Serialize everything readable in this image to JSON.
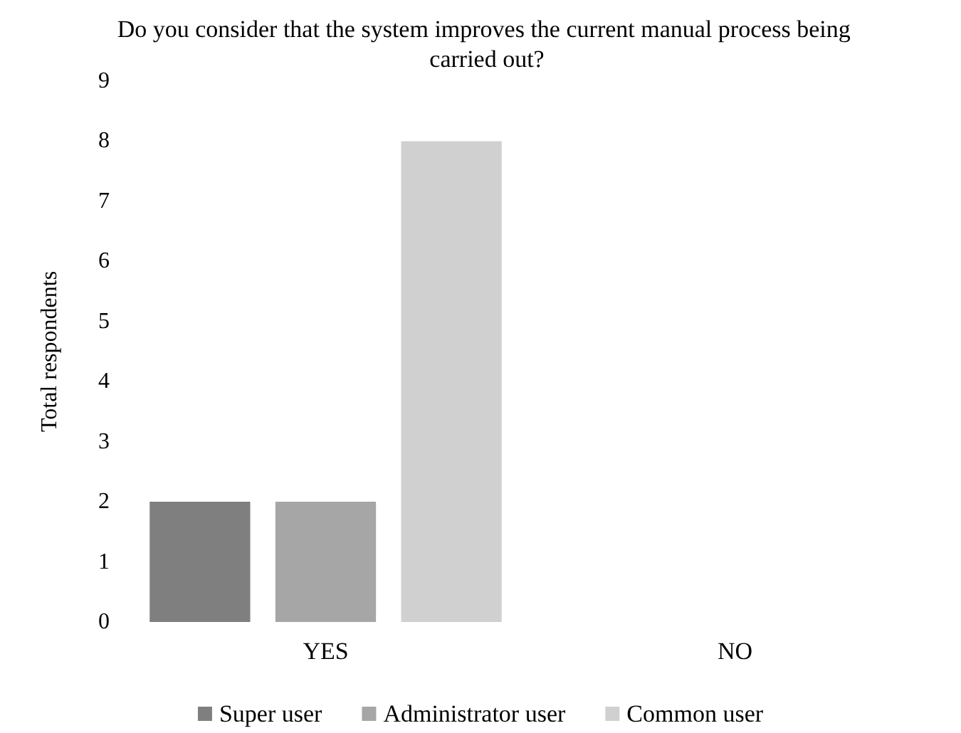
{
  "chart_data": {
    "type": "bar",
    "title": "Do you consider that the system improves the current manual process being carried out?",
    "ylabel": "Total respondents",
    "categories": [
      "YES",
      "NO"
    ],
    "series": [
      {
        "name": "Super user",
        "color": "#7f7f7f",
        "values": [
          2,
          0
        ]
      },
      {
        "name": "Administrator user",
        "color": "#a6a6a6",
        "values": [
          2,
          0
        ]
      },
      {
        "name": "Common user",
        "color": "#d0d0d0",
        "values": [
          8,
          0
        ]
      }
    ],
    "ylim": [
      0,
      9
    ],
    "yticks": [
      0,
      1,
      2,
      3,
      4,
      5,
      6,
      7,
      8,
      9
    ],
    "grid": false,
    "legend": "bottom"
  }
}
